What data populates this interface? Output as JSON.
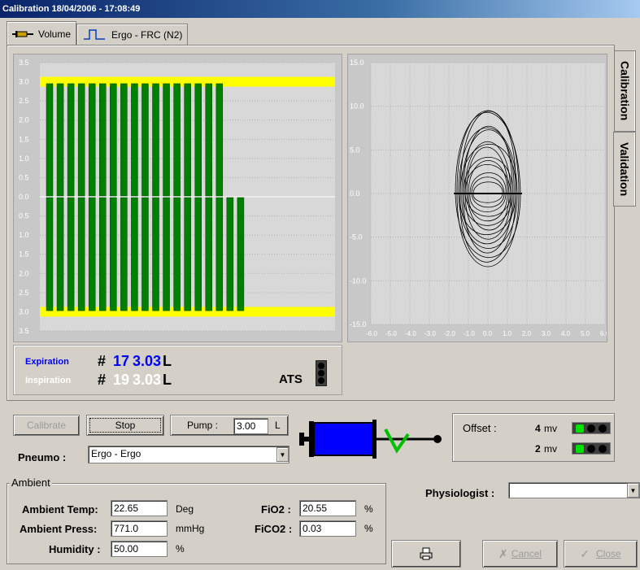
{
  "window": {
    "title": "Calibration 18/04/2006 - 17:08:49"
  },
  "tabs": [
    {
      "label": "Volume",
      "icon": "syringe-icon"
    },
    {
      "label": "Ergo - FRC (N2)",
      "icon": "pulse-icon"
    }
  ],
  "side_tabs": [
    {
      "label": "Calibration"
    },
    {
      "label": "Validation"
    }
  ],
  "left_chart": {
    "y_ticks": [
      "3.5",
      "3.0",
      "2.5",
      "2.0",
      "1.5",
      "1.0",
      "0.5",
      "0.0",
      "0.5",
      "1.0",
      "1.5",
      "2.0",
      "2.5",
      "3.0",
      "3.5"
    ],
    "expiration_bars": 17,
    "inspiration_bars": 19,
    "target_value": 3.0,
    "bar_value": 2.95
  },
  "right_chart": {
    "y_ticks": [
      "15.0",
      "10.0",
      "5.0",
      "0.0",
      "-5.0",
      "-10.0",
      "-15.0"
    ],
    "x_ticks": [
      "-6.0",
      "-5.0",
      "-4.0",
      "-3.0",
      "-2.0",
      "-1.0",
      "0.0",
      "1.0",
      "2.0",
      "3.0",
      "4.0",
      "5.0",
      "6.0"
    ]
  },
  "volume": {
    "expiration_label": "Expiration",
    "expiration_count": "17",
    "expiration_value": "3.03",
    "inspiration_label": "Inspiration",
    "inspiration_count": "19",
    "inspiration_value": "3.03",
    "hash": "#",
    "unit": "L",
    "ats_label": "ATS"
  },
  "controls": {
    "calibrate_label": "Calibrate",
    "stop_label": "Stop",
    "pump_label": "Pump :",
    "pump_value": "3.00",
    "pump_unit": "L",
    "pneumo_label": "Pneumo :",
    "pneumo_value": "Ergo - Ergo"
  },
  "offset": {
    "label": "Offset :",
    "rows": [
      {
        "value": "4",
        "unit": "mv"
      },
      {
        "value": "2",
        "unit": "mv"
      }
    ]
  },
  "ambient": {
    "title": "Ambient",
    "temp_label": "Ambient Temp:",
    "temp_value": "22.65",
    "temp_unit": "Deg",
    "press_label": "Ambient Press:",
    "press_value": "771.0",
    "press_unit": "mmHg",
    "humidity_label": "Humidity :",
    "humidity_value": "50.00",
    "humidity_unit": "%",
    "fio2_label": "FiO2 :",
    "fio2_value": "20.55",
    "fio2_unit": "%",
    "fico2_label": "FiCO2 :",
    "fico2_value": "0.03",
    "fico2_unit": "%"
  },
  "physiologist": {
    "label": "Physiologist :",
    "value": ""
  },
  "footer": {
    "cancel_label": "Cancel",
    "close_label": "Close"
  },
  "colors": {
    "bar": "#008000",
    "target": "#ffff00",
    "expiration": "#0000ff",
    "inspiration": "#ffffff",
    "led_on": "#00e000"
  }
}
